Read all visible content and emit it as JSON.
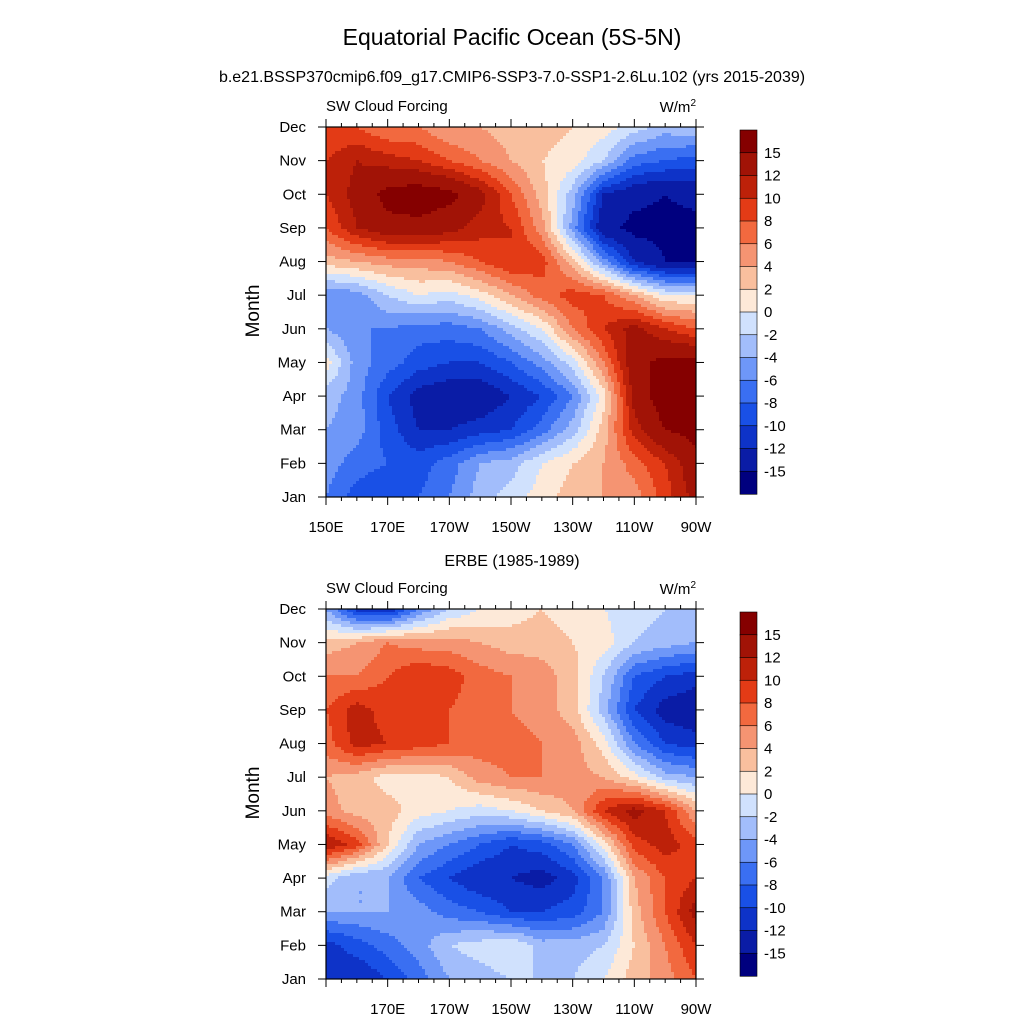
{
  "figure": {
    "title": "Equatorial Pacific Ocean (5S-5N)",
    "subtitle": "b.e21.BSSP370cmip6.f09_g17.CMIP6-SSP3-7.0-SSP1-2.6Lu.102 (yrs 2015-2039)"
  },
  "colorbar": {
    "levels": [
      -15,
      -12,
      -10,
      -8,
      -6,
      -4,
      -2,
      0,
      2,
      4,
      6,
      8,
      10,
      12,
      15
    ],
    "labels": [
      "15",
      "12",
      "10",
      "8",
      "6",
      "4",
      "2",
      "0",
      "-2",
      "-4",
      "-6",
      "-8",
      "-10",
      "-12",
      "-15"
    ],
    "colors": [
      "#00007f",
      "#0a1ca6",
      "#0e33c8",
      "#1950e6",
      "#3a6ff2",
      "#6e97f8",
      "#a2bdfb",
      "#d0e1fd",
      "#fde9d8",
      "#f9bf9e",
      "#f59472",
      "#f2693f",
      "#e33b16",
      "#bd2109",
      "#a11306",
      "#850000"
    ]
  },
  "chart_data": [
    {
      "type": "heatmap",
      "title": "",
      "panel_left_label": "SW Cloud Forcing",
      "units": "W/m",
      "units_exp": "2",
      "ylabel": "Month",
      "xlabel": "",
      "x_ticks": [
        "150E",
        "170E",
        "170W",
        "150W",
        "130W",
        "110W",
        "90W"
      ],
      "x_range": [
        150,
        270
      ],
      "y_ticks": [
        "Jan",
        "Feb",
        "Mar",
        "Apr",
        "May",
        "Jun",
        "Jul",
        "Aug",
        "Sep",
        "Oct",
        "Nov",
        "Dec"
      ],
      "y_range": [
        1,
        12
      ],
      "x": [
        150,
        160,
        170,
        180,
        190,
        200,
        210,
        220,
        230,
        240,
        250,
        260,
        270
      ],
      "y": [
        1,
        2,
        3,
        4,
        5,
        6,
        7,
        8,
        9,
        10,
        11,
        12
      ],
      "z": [
        [
          -6,
          -9,
          -10,
          -8,
          -6,
          -3,
          -1,
          1,
          3,
          4,
          5,
          9,
          13
        ],
        [
          -5,
          -7,
          -8,
          -9,
          -7,
          -4,
          -3,
          0,
          2,
          4,
          7,
          10,
          14
        ],
        [
          -4,
          -5,
          -9,
          -12,
          -12,
          -11,
          -10,
          -7,
          -3,
          3,
          11,
          15,
          16
        ],
        [
          -3,
          -5,
          -10,
          -13,
          -14,
          -14,
          -12,
          -10,
          -6,
          1,
          13,
          17,
          17
        ],
        [
          1,
          -5,
          -7,
          -9,
          -10,
          -10,
          -8,
          -5,
          -1,
          6,
          14,
          16,
          16
        ],
        [
          -4,
          -6,
          -6,
          -7,
          -7,
          -6,
          -3,
          0,
          6,
          10,
          13,
          10,
          8
        ],
        [
          -6,
          -5,
          -2,
          0,
          -1,
          1,
          4,
          7,
          9,
          8,
          4,
          0,
          0
        ],
        [
          3,
          4,
          5,
          5,
          6,
          8,
          10,
          9,
          3,
          -5,
          -12,
          -15,
          -15
        ],
        [
          8,
          12,
          14,
          14,
          13,
          11,
          10,
          5,
          -5,
          -14,
          -16,
          -16,
          -16
        ],
        [
          10,
          13,
          16,
          17,
          16,
          13,
          8,
          3,
          -3,
          -12,
          -14,
          -15,
          -14
        ],
        [
          10,
          12,
          11,
          10,
          8,
          6,
          4,
          2,
          1,
          -2,
          -7,
          -8,
          -9
        ],
        [
          8,
          8,
          6,
          6,
          4,
          4,
          3,
          3,
          2,
          1,
          -1,
          -3,
          -2
        ]
      ]
    },
    {
      "type": "heatmap",
      "title": "ERBE (1985-1989)",
      "panel_left_label": "SW Cloud Forcing",
      "units": "W/m",
      "units_exp": "2",
      "ylabel": "Month",
      "xlabel": "",
      "x_ticks": [
        "170E",
        "170W",
        "150W",
        "130W",
        "110W",
        "90W"
      ],
      "x_range": [
        150,
        270
      ],
      "y_ticks": [
        "Jan",
        "Feb",
        "Mar",
        "Apr",
        "May",
        "Jun",
        "Jul",
        "Aug",
        "Sep",
        "Oct",
        "Nov",
        "Dec"
      ],
      "y_range": [
        1,
        12
      ],
      "x": [
        150,
        160,
        170,
        180,
        190,
        200,
        210,
        220,
        230,
        240,
        250,
        260,
        270
      ],
      "y": [
        1,
        2,
        3,
        4,
        5,
        6,
        7,
        8,
        9,
        10,
        11,
        12
      ],
      "z": [
        [
          -10,
          -12,
          -10,
          -7,
          -4,
          -3,
          -2,
          -2,
          -2,
          0,
          3,
          5,
          8
        ],
        [
          -11,
          -9,
          -7,
          -5,
          -2,
          -1,
          0,
          -3,
          -3,
          -2,
          2,
          6,
          10
        ],
        [
          -4,
          -4,
          -4,
          -5,
          -7,
          -8,
          -10,
          -10,
          -9,
          -6,
          3,
          8,
          13
        ],
        [
          -1,
          -4,
          -4,
          -8,
          -10,
          -12,
          -12,
          -13,
          -11,
          -6,
          4,
          8,
          10
        ],
        [
          12,
          9,
          2,
          -4,
          -6,
          -8,
          -10,
          -9,
          -6,
          1,
          9,
          11,
          9
        ],
        [
          5,
          3,
          3,
          1,
          0,
          -1,
          0,
          2,
          4,
          10,
          13,
          10,
          4
        ],
        [
          4,
          3,
          1,
          1,
          2,
          5,
          6,
          6,
          5,
          4,
          1,
          -3,
          -4
        ],
        [
          7,
          11,
          10,
          9,
          8,
          7,
          7,
          6,
          5,
          1,
          -6,
          -10,
          -11
        ],
        [
          8,
          11,
          9,
          9,
          8,
          7,
          6,
          5,
          3,
          -3,
          -10,
          -13,
          -14
        ],
        [
          6,
          6,
          8,
          10,
          9,
          7,
          6,
          5,
          3,
          -2,
          -8,
          -10,
          -11
        ],
        [
          3,
          4,
          6,
          5,
          5,
          4,
          3,
          3,
          2,
          1,
          -2,
          -3,
          -4
        ],
        [
          -4,
          -11,
          -12,
          -6,
          -2,
          0,
          1,
          2,
          1,
          0,
          -1,
          -2,
          -2
        ]
      ]
    }
  ]
}
